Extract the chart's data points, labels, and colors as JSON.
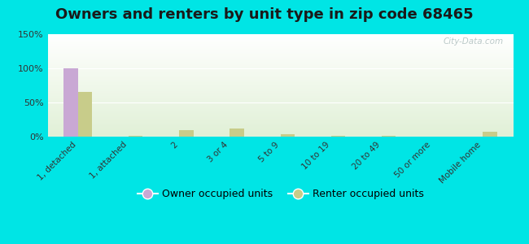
{
  "title": "Owners and renters by unit type in zip code 68465",
  "categories": [
    "1, detached",
    "1, attached",
    "2",
    "3 or 4",
    "5 to 9",
    "10 to 19",
    "20 to 49",
    "50 or more",
    "Mobile home"
  ],
  "owner_values": [
    100,
    0,
    0,
    0,
    0,
    0,
    0,
    0,
    0
  ],
  "renter_values": [
    65,
    1,
    10,
    12,
    3,
    1,
    1,
    0,
    7
  ],
  "owner_color": "#c9a8d4",
  "renter_color": "#c8cc8a",
  "background_color": "#00e5e5",
  "ylim": [
    0,
    150
  ],
  "yticks": [
    0,
    50,
    100,
    150
  ],
  "ytick_labels": [
    "0%",
    "50%",
    "100%",
    "150%"
  ],
  "bar_width": 0.28,
  "title_fontsize": 13,
  "legend_labels": [
    "Owner occupied units",
    "Renter occupied units"
  ],
  "watermark": "City-Data.com"
}
